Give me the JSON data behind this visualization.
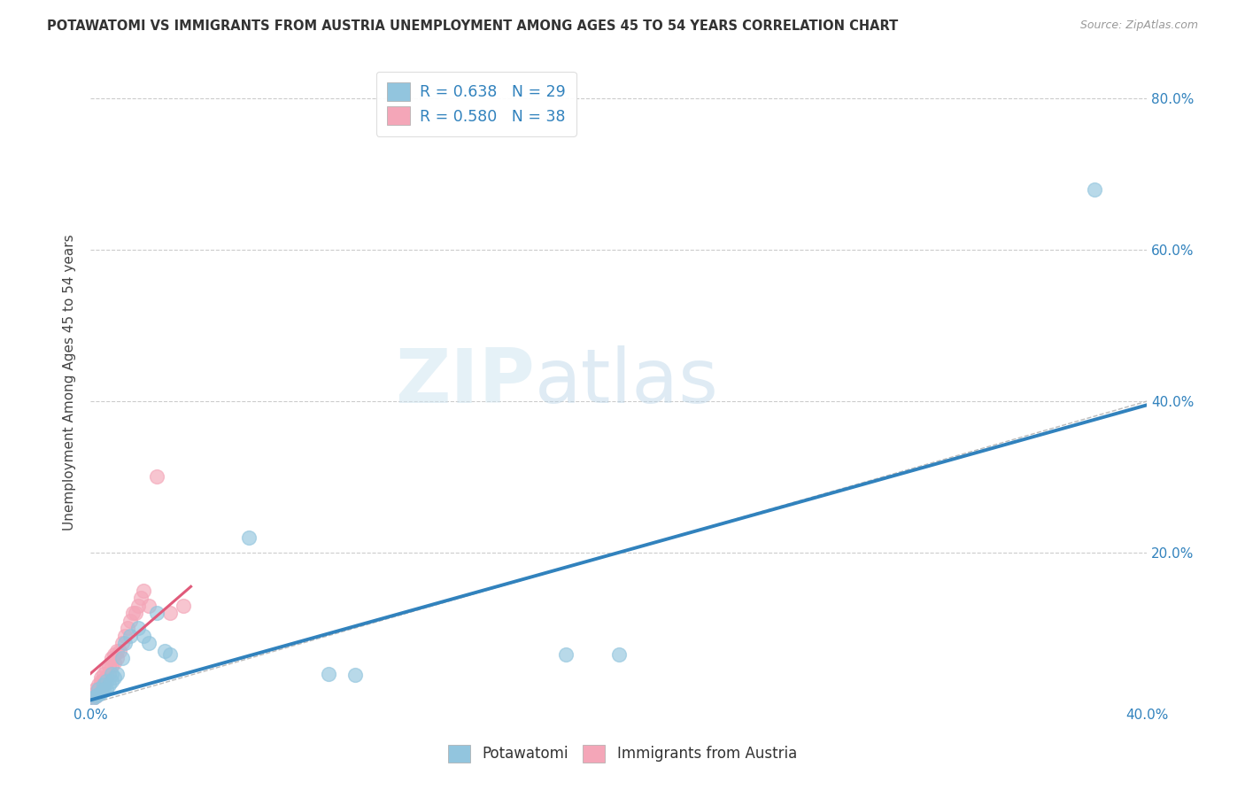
{
  "title": "POTAWATOMI VS IMMIGRANTS FROM AUSTRIA UNEMPLOYMENT AMONG AGES 45 TO 54 YEARS CORRELATION CHART",
  "source": "Source: ZipAtlas.com",
  "ylabel": "Unemployment Among Ages 45 to 54 years",
  "xlim": [
    0.0,
    0.4
  ],
  "ylim": [
    0.0,
    0.85
  ],
  "xticks": [
    0.0,
    0.05,
    0.1,
    0.15,
    0.2,
    0.25,
    0.3,
    0.35,
    0.4
  ],
  "yticks": [
    0.0,
    0.2,
    0.4,
    0.6,
    0.8
  ],
  "right_ytick_labels": [
    "20.0%",
    "40.0%",
    "60.0%",
    "80.0%"
  ],
  "right_yticks": [
    0.2,
    0.4,
    0.6,
    0.8
  ],
  "legend_r1": "R = 0.638",
  "legend_n1": "N = 29",
  "legend_r2": "R = 0.580",
  "legend_n2": "N = 38",
  "color_blue": "#92c5de",
  "color_pink": "#f4a6b8",
  "color_line_blue": "#3182bd",
  "color_line_pink": "#e05a7a",
  "color_diag": "#bbbbbb",
  "watermark_zip": "ZIP",
  "watermark_atlas": "atlas",
  "blue_scatter": [
    [
      0.001,
      0.008
    ],
    [
      0.002,
      0.01
    ],
    [
      0.003,
      0.012
    ],
    [
      0.003,
      0.02
    ],
    [
      0.004,
      0.015
    ],
    [
      0.005,
      0.018
    ],
    [
      0.005,
      0.025
    ],
    [
      0.006,
      0.02
    ],
    [
      0.006,
      0.03
    ],
    [
      0.007,
      0.025
    ],
    [
      0.008,
      0.03
    ],
    [
      0.008,
      0.04
    ],
    [
      0.009,
      0.035
    ],
    [
      0.01,
      0.04
    ],
    [
      0.012,
      0.06
    ],
    [
      0.013,
      0.08
    ],
    [
      0.015,
      0.09
    ],
    [
      0.018,
      0.1
    ],
    [
      0.02,
      0.09
    ],
    [
      0.022,
      0.08
    ],
    [
      0.025,
      0.12
    ],
    [
      0.028,
      0.07
    ],
    [
      0.03,
      0.065
    ],
    [
      0.06,
      0.22
    ],
    [
      0.09,
      0.04
    ],
    [
      0.1,
      0.038
    ],
    [
      0.18,
      0.065
    ],
    [
      0.2,
      0.065
    ],
    [
      0.38,
      0.68
    ]
  ],
  "pink_scatter": [
    [
      0.001,
      0.008
    ],
    [
      0.001,
      0.012
    ],
    [
      0.002,
      0.01
    ],
    [
      0.002,
      0.015
    ],
    [
      0.002,
      0.02
    ],
    [
      0.003,
      0.015
    ],
    [
      0.003,
      0.02
    ],
    [
      0.003,
      0.025
    ],
    [
      0.004,
      0.02
    ],
    [
      0.004,
      0.03
    ],
    [
      0.004,
      0.035
    ],
    [
      0.005,
      0.025
    ],
    [
      0.005,
      0.03
    ],
    [
      0.005,
      0.04
    ],
    [
      0.006,
      0.035
    ],
    [
      0.006,
      0.045
    ],
    [
      0.007,
      0.04
    ],
    [
      0.007,
      0.05
    ],
    [
      0.008,
      0.05
    ],
    [
      0.008,
      0.06
    ],
    [
      0.009,
      0.055
    ],
    [
      0.009,
      0.065
    ],
    [
      0.01,
      0.06
    ],
    [
      0.01,
      0.07
    ],
    [
      0.011,
      0.07
    ],
    [
      0.012,
      0.08
    ],
    [
      0.013,
      0.09
    ],
    [
      0.014,
      0.1
    ],
    [
      0.015,
      0.11
    ],
    [
      0.016,
      0.12
    ],
    [
      0.017,
      0.12
    ],
    [
      0.018,
      0.13
    ],
    [
      0.019,
      0.14
    ],
    [
      0.02,
      0.15
    ],
    [
      0.022,
      0.13
    ],
    [
      0.025,
      0.3
    ],
    [
      0.03,
      0.12
    ],
    [
      0.035,
      0.13
    ]
  ],
  "blue_line_x": [
    0.0,
    0.4
  ],
  "blue_line_y": [
    0.005,
    0.395
  ],
  "pink_line_x": [
    0.0,
    0.038
  ],
  "pink_line_y": [
    0.04,
    0.155
  ]
}
